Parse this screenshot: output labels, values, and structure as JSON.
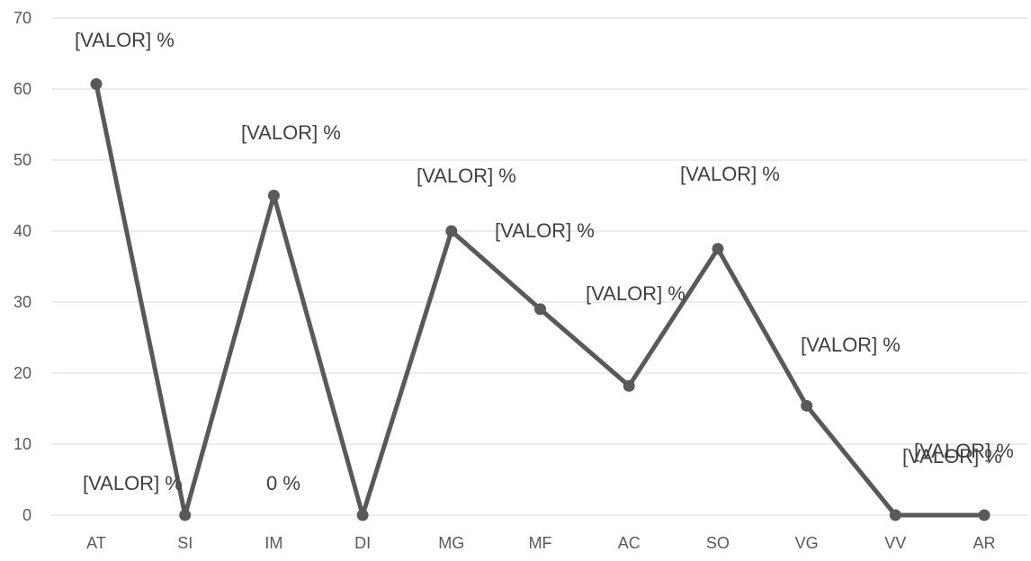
{
  "chart_data": {
    "type": "line",
    "title": "",
    "xlabel": "",
    "ylabel": "",
    "ylim": [
      0,
      70
    ],
    "yticks": [
      0,
      10,
      20,
      30,
      40,
      50,
      60,
      70
    ],
    "grid": true,
    "categories": [
      "AT",
      "SI",
      "IM",
      "DI",
      "MG",
      "MF",
      "AC",
      "SO",
      "VG",
      "VV",
      "AR"
    ],
    "series": [
      {
        "values": [
          60.7,
          0,
          45,
          0,
          40,
          29,
          18.2,
          37.5,
          15.4,
          0,
          0
        ],
        "data_labels": [
          "[VALOR] %",
          "[VALOR] %",
          "[VALOR] %",
          "0 %",
          "[VALOR] %",
          "[VALOR] %",
          "[VALOR] %",
          "[VALOR] %",
          "[VALOR] %",
          "[VALOR] %",
          "[VALOR] %"
        ]
      }
    ],
    "colors": {
      "line": "#595959",
      "grid": "#d9d9d9",
      "text": "#595959",
      "label": "#404040"
    }
  }
}
